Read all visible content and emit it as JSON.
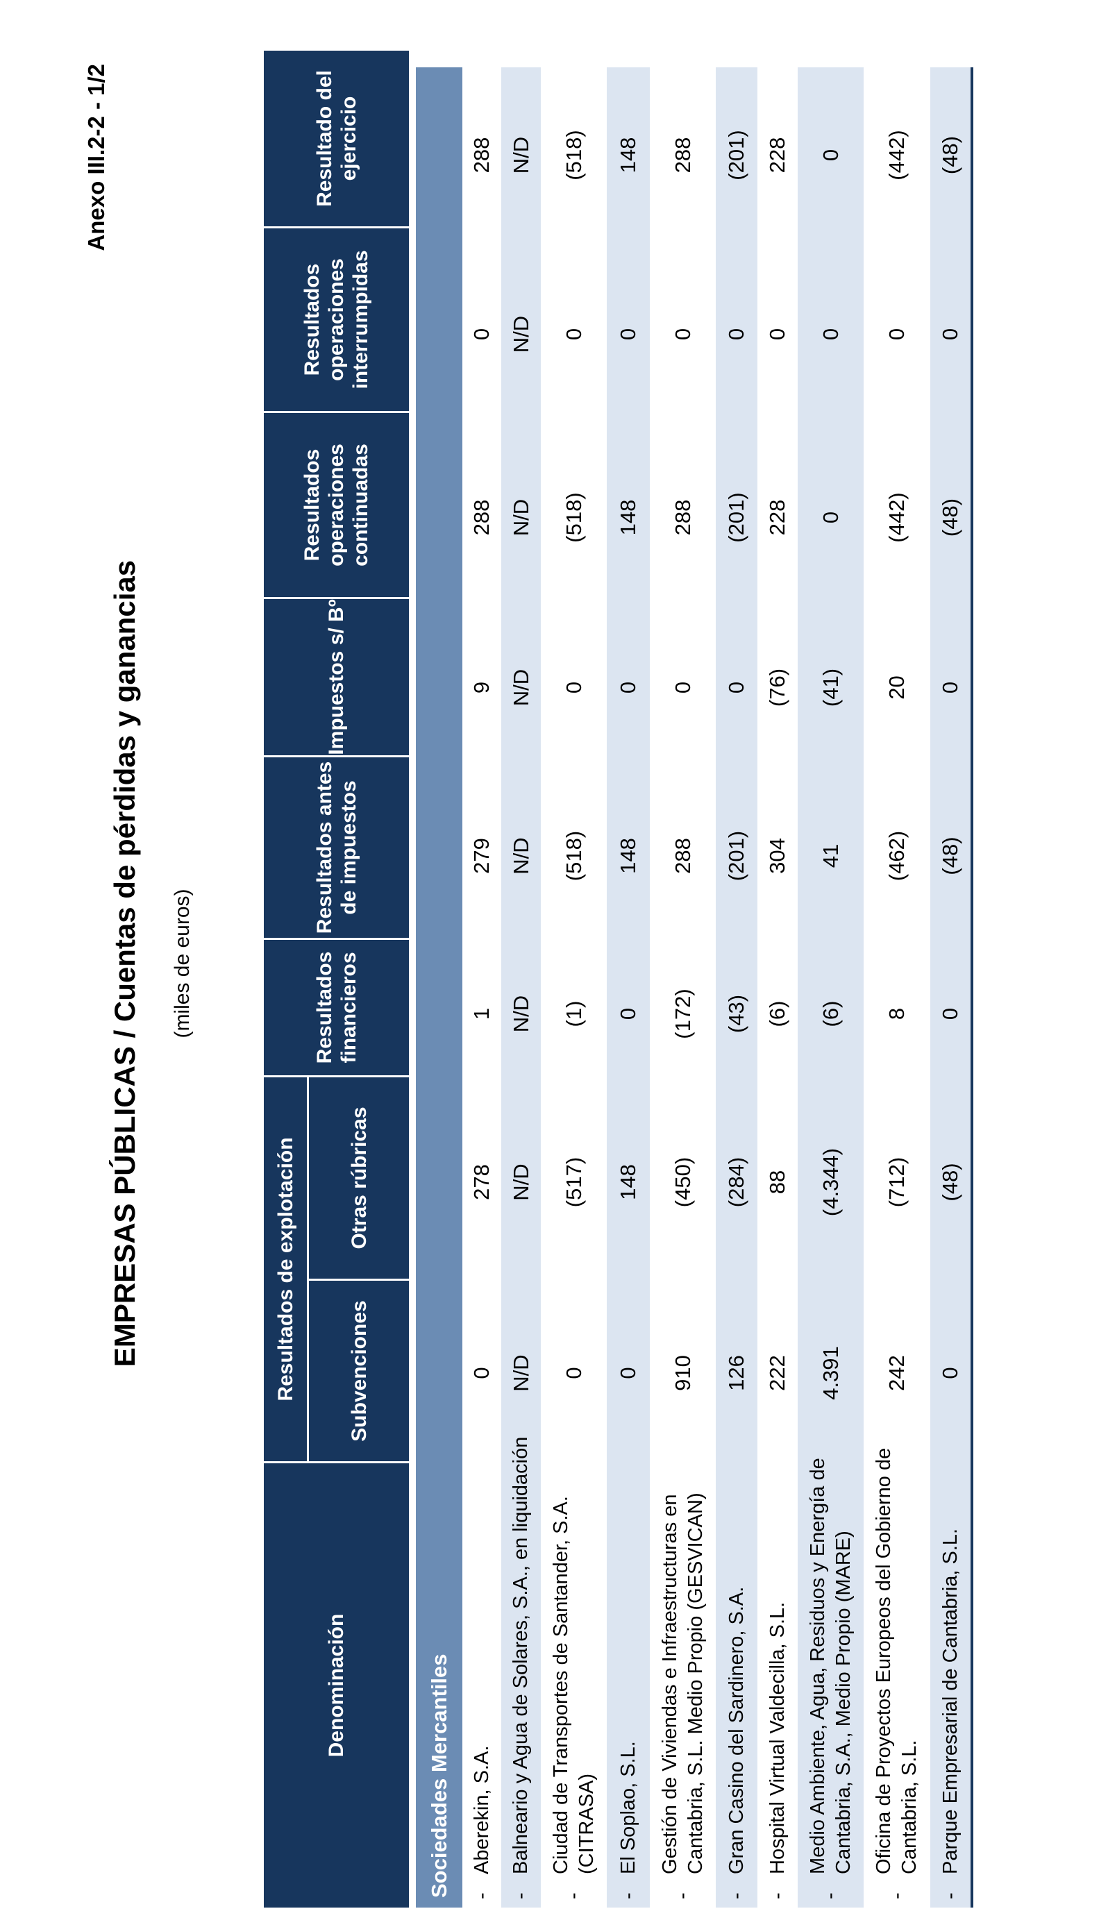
{
  "page": {
    "annex_label": "Anexo III.2-2 - 1/2",
    "title": "EMPRESAS PÚBLICAS  /  Cuentas de pérdidas y ganancias",
    "subtitle": "(miles de euros)"
  },
  "colors": {
    "header_navy": "#17365D",
    "section_blue": "#6B8CB4",
    "row_stripe_blue": "#DCE5F1"
  },
  "table": {
    "group_header": "Resultados de explotación",
    "columns": [
      {
        "label": "Denominación"
      },
      {
        "label": "Subvenciones"
      },
      {
        "label": "Otras rúbricas"
      },
      {
        "label": "Resultados financieros"
      },
      {
        "label": "Resultados antes de impuestos"
      },
      {
        "label": "Impuestos s/ Bº"
      },
      {
        "label": "Resultados operaciones continuadas"
      },
      {
        "label": "Resultados operaciones interrumpidas"
      },
      {
        "label": "Resultado del ejercicio"
      }
    ],
    "section_label": "Sociedades Mercantiles",
    "rows": [
      {
        "name_lines": [
          "Aberekin, S.A."
        ],
        "values": [
          "0",
          "278",
          "1",
          "279",
          "9",
          "288",
          "0",
          "288"
        ]
      },
      {
        "name_lines": [
          "Balneario y Agua de Solares, S.A., en liquidación"
        ],
        "values": [
          "N/D",
          "N/D",
          "N/D",
          "N/D",
          "N/D",
          "N/D",
          "N/D",
          "N/D"
        ]
      },
      {
        "name_lines": [
          "Ciudad de Transportes de Santander, S.A.",
          "(CITRASA)"
        ],
        "values": [
          "0",
          "(517)",
          "(1)",
          "(518)",
          "0",
          "(518)",
          "0",
          "(518)"
        ]
      },
      {
        "name_lines": [
          "El Soplao, S.L."
        ],
        "values": [
          "0",
          "148",
          "0",
          "148",
          "0",
          "148",
          "0",
          "148"
        ]
      },
      {
        "name_lines": [
          "Gestión de Viviendas e Infraestructuras en",
          "Cantabria, S.L. Medio Propio (GESVICAN)"
        ],
        "values": [
          "910",
          "(450)",
          "(172)",
          "288",
          "0",
          "288",
          "0",
          "288"
        ]
      },
      {
        "name_lines": [
          "Gran Casino del Sardinero, S.A."
        ],
        "values": [
          "126",
          "(284)",
          "(43)",
          "(201)",
          "0",
          "(201)",
          "0",
          "(201)"
        ]
      },
      {
        "name_lines": [
          "Hospital Virtual Valdecilla, S.L."
        ],
        "values": [
          "222",
          "88",
          "(6)",
          "304",
          "(76)",
          "228",
          "0",
          "228"
        ]
      },
      {
        "name_lines": [
          "Medio Ambiente, Agua, Residuos y Energía de",
          "Cantabria, S.A., Medio Propio (MARE)"
        ],
        "values": [
          "4.391",
          "(4.344)",
          "(6)",
          "41",
          "(41)",
          "0",
          "0",
          "0"
        ]
      },
      {
        "name_lines": [
          "Oficina de Proyectos Europeos del Gobierno de",
          "Cantabria, S.L."
        ],
        "values": [
          "242",
          "(712)",
          "8",
          "(462)",
          "20",
          "(442)",
          "0",
          "(442)"
        ]
      },
      {
        "name_lines": [
          "Parque Empresarial de Cantabria, S.L."
        ],
        "values": [
          "0",
          "(48)",
          "0",
          "(48)",
          "0",
          "(48)",
          "0",
          "(48)"
        ]
      }
    ]
  }
}
